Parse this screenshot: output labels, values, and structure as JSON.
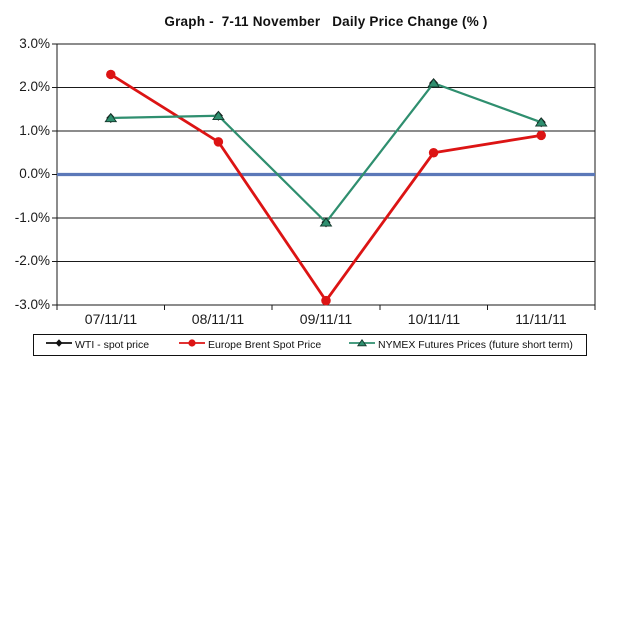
{
  "chart_data": {
    "type": "line",
    "title": "Graph -  7-11 November   Daily Price Change (% )",
    "categories": [
      "07/11/11",
      "08/11/11",
      "09/11/11",
      "10/11/11",
      "11/11/11"
    ],
    "series": [
      {
        "name": "WTI - spot price",
        "color": "#111111",
        "marker": "diamond",
        "values": [
          1.3,
          1.35,
          -1.1,
          2.1,
          1.2
        ]
      },
      {
        "name": "Europe Brent Spot Price",
        "color": "#dc1414",
        "marker": "circle",
        "values": [
          2.3,
          0.75,
          -2.9,
          0.5,
          0.9
        ]
      },
      {
        "name": "NYMEX Futures Prices (future short term)",
        "color": "#2f8f6f",
        "marker": "triangle",
        "values": [
          1.3,
          1.35,
          -1.1,
          2.1,
          1.2
        ]
      }
    ],
    "ylim": [
      -3.0,
      3.0
    ],
    "ytick_step": 1.0,
    "yticks_labels": [
      "3.0%",
      "2.0%",
      "1.0%",
      "0.0%",
      "-1.0%",
      "-2.0%",
      "-3.0%"
    ],
    "xlabel": "",
    "ylabel": "",
    "grid": "horizontal",
    "gridline_color": "#1a1a1a",
    "zero_line_color": "#5b78b8",
    "legend_position": "bottom"
  }
}
